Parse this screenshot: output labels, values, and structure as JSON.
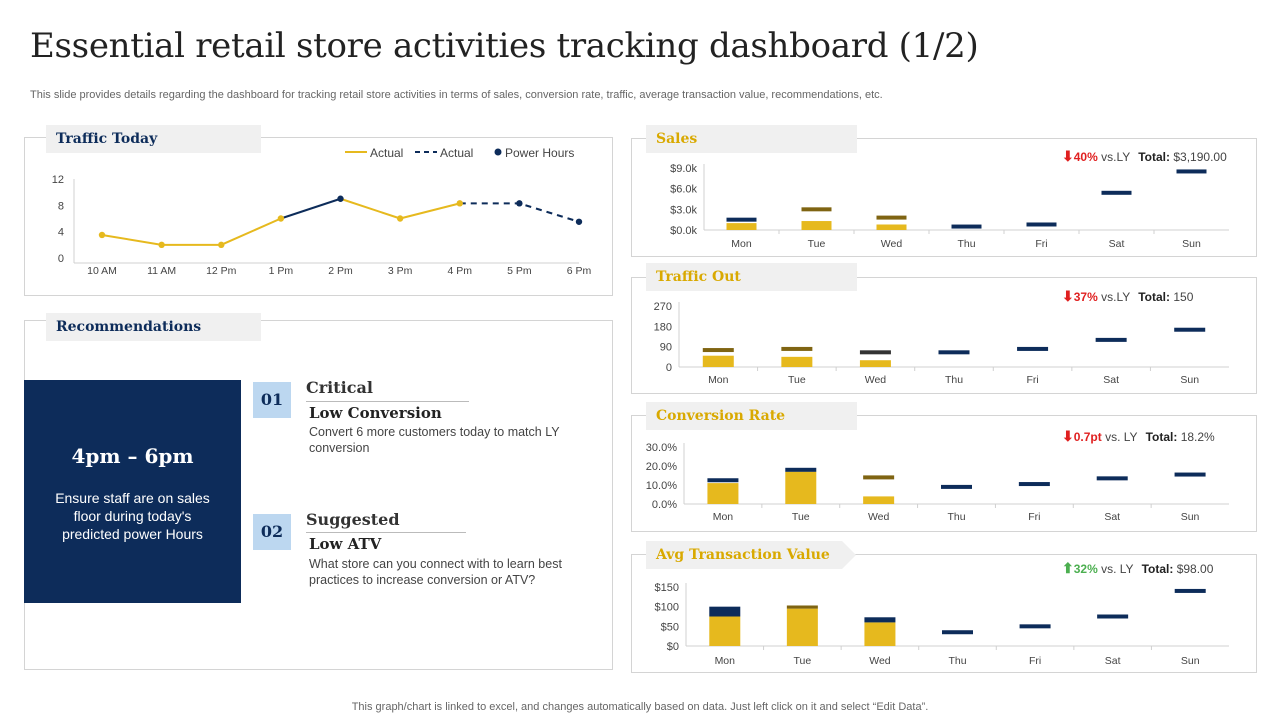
{
  "page": {
    "title": "Essential retail store activities tracking dashboard (1/2)",
    "subtitle": "This slide provides details regarding the dashboard for tracking retail store activities in terms of sales, conversion rate, traffic,  average transaction value, recommendations, etc.",
    "footer": "This graph/chart is linked to excel,  and changes automatically based on data. Just left click on it and select “Edit Data”."
  },
  "colors": {
    "navy": "#0d2c5a",
    "gold": "#e6b91e",
    "olive": "#7f6412",
    "up": "#4caf50",
    "down": "#e02020"
  },
  "traffic_today": {
    "tab": "Traffic Today",
    "legend": {
      "actual_solid": "Actual",
      "actual_dashed": "Actual",
      "power_hours": "Power Hours"
    }
  },
  "recommendations": {
    "tab": "Recommendations",
    "time": "4pm – 6pm",
    "text": "Ensure staff are on sales floor  during today's predicted power Hours",
    "items": [
      {
        "num": "01",
        "heading": "Critical",
        "sub": "Low Conversion",
        "desc": "Convert  6 more customers today to match LY conversion"
      },
      {
        "num": "02",
        "heading": "Suggested",
        "sub": "Low ATV",
        "desc": "What store can you connect with to learn best practices to increase conversion or ATV?"
      }
    ]
  },
  "kpis": {
    "sales": {
      "tab": "Sales",
      "arrow": "⬇",
      "pct": "40%",
      "vs": "vs.LY",
      "total_label": "Total:",
      "total": "$3,190.00"
    },
    "traffic_out": {
      "tab": "Traffic Out",
      "arrow": "⬇",
      "pct": "37%",
      "vs": "vs.LY",
      "total_label": "Total:",
      "total": "150"
    },
    "conversion": {
      "tab": "Conversion Rate",
      "arrow": "⬇",
      "pct": "0.7pt",
      "vs": "vs. LY",
      "total_label": "Total:",
      "total": "18.2%"
    },
    "atv": {
      "tab": "Avg Transaction Value",
      "arrow": "⬆",
      "pct": "32%",
      "vs": " vs. LY",
      "total_label": "Total:",
      "total": "$98.00"
    }
  },
  "chart_data": [
    {
      "id": "traffic_today",
      "type": "line",
      "categories": [
        "10 AM",
        "11 AM",
        "12 Pm",
        "1 Pm",
        "2 Pm",
        "3 Pm",
        "4 Pm",
        "5 Pm",
        "6 Pm"
      ],
      "yticks": [
        "0",
        "4",
        "8",
        "12"
      ],
      "ylim": [
        0,
        12
      ],
      "series": [
        {
          "name": "Actual",
          "style": "solid",
          "color": "#e6b91e",
          "values": [
            3.5,
            2,
            2,
            6,
            null,
            6,
            8.3,
            null,
            null
          ]
        },
        {
          "name": "Actual",
          "style": "dashed",
          "color": "#0d2c5a",
          "values": [
            null,
            null,
            null,
            null,
            null,
            null,
            8.3,
            8.3,
            5.5
          ]
        },
        {
          "style": "solid",
          "color": "#0d2c5a",
          "values": [
            null,
            null,
            null,
            6,
            9,
            null,
            null,
            null,
            null
          ]
        },
        {
          "style": "solid",
          "color": "#e6b91e",
          "values": [
            null,
            null,
            null,
            null,
            9,
            6,
            null,
            null,
            null
          ]
        }
      ],
      "power_hours": [
        4,
        7,
        8
      ],
      "grid": false
    },
    {
      "id": "sales",
      "type": "bar",
      "categories": [
        "Mon",
        "Tue",
        "Wed",
        "Thu",
        "Fri",
        "Sat",
        "Sun"
      ],
      "yticks": [
        "$0.0k",
        "$3.0k",
        "$6.0k",
        "$9.0k"
      ],
      "ylim": [
        0,
        9000
      ],
      "bars": [
        1000,
        1300,
        800,
        null,
        null,
        null,
        null
      ],
      "caps": [
        1500,
        3000,
        1800,
        500,
        800,
        5400,
        8500
      ],
      "cap_colors": [
        "#0d2c5a",
        "#7f6412",
        "#7f6412",
        "#0d2c5a",
        "#0d2c5a",
        "#0d2c5a",
        "#0d2c5a"
      ]
    },
    {
      "id": "traffic_out",
      "type": "bar",
      "categories": [
        "Mon",
        "Tue",
        "Wed",
        "Thu",
        "Fri",
        "Sat",
        "Sun"
      ],
      "yticks": [
        "0",
        "90",
        "180",
        "270"
      ],
      "ylim": [
        0,
        270
      ],
      "bars": [
        50,
        45,
        30,
        null,
        null,
        null,
        null
      ],
      "caps": [
        75,
        80,
        65,
        65,
        80,
        120,
        165
      ],
      "cap_colors": [
        "#7f6412",
        "#7f6412",
        "#333333",
        "#0d2c5a",
        "#0d2c5a",
        "#0d2c5a",
        "#0d2c5a"
      ]
    },
    {
      "id": "conversion",
      "type": "bar",
      "categories": [
        "Mon",
        "Tue",
        "Wed",
        "Thu",
        "Fri",
        "Sat",
        "Sun"
      ],
      "yticks": [
        "0.0%",
        "10.0%",
        "20.0%",
        "30.0%"
      ],
      "ylim": [
        0,
        30
      ],
      "bars": [
        11,
        17,
        4,
        null,
        null,
        null,
        null
      ],
      "caps": [
        12.5,
        18,
        14,
        9,
        10.5,
        13.5,
        15.5
      ],
      "cap_colors": [
        "#0d2c5a",
        "#0d2c5a",
        "#7f6412",
        "#0d2c5a",
        "#0d2c5a",
        "#0d2c5a",
        "#0d2c5a"
      ]
    },
    {
      "id": "atv",
      "type": "bar",
      "categories": [
        "Mon",
        "Tue",
        "Wed",
        "Thu",
        "Fri",
        "Sat",
        "Sun"
      ],
      "yticks": [
        "$0",
        "$50",
        "$100",
        "$150"
      ],
      "ylim": [
        0,
        150
      ],
      "bars": [
        75,
        95,
        60,
        null,
        null,
        null,
        null
      ],
      "stacks": [
        25,
        8,
        13,
        null,
        null,
        null,
        null
      ],
      "stack_colors": [
        "#0d2c5a",
        "#7f6412",
        "#0d2c5a",
        null,
        null,
        null,
        null
      ],
      "caps": [
        null,
        null,
        null,
        35,
        50,
        75,
        140
      ],
      "cap_colors": [
        null,
        null,
        null,
        "#0d2c5a",
        "#0d2c5a",
        "#0d2c5a",
        "#0d2c5a"
      ]
    }
  ]
}
